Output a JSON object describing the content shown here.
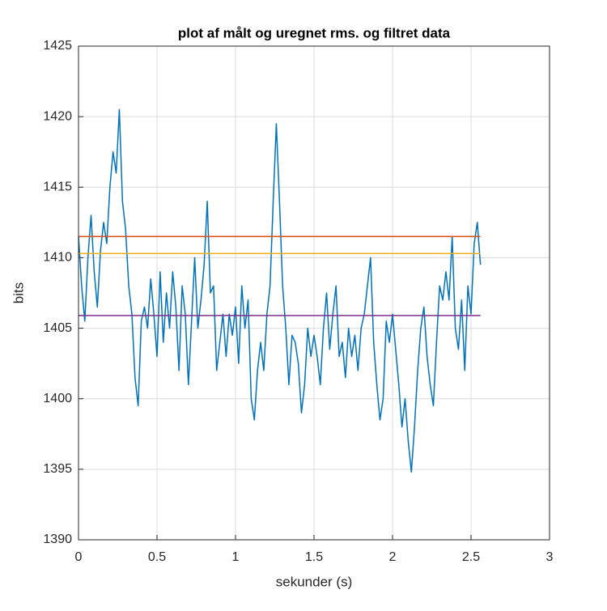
{
  "chart_data": {
    "type": "line",
    "title": "plot af målt og uregnet rms. og filtret data",
    "xlabel": "sekunder (s)",
    "ylabel": "bits",
    "xlim": [
      0,
      3
    ],
    "ylim": [
      1390,
      1425
    ],
    "xticks": [
      0,
      0.5,
      1,
      1.5,
      2,
      2.5,
      3
    ],
    "yticks": [
      1390,
      1395,
      1400,
      1405,
      1410,
      1415,
      1420,
      1425
    ],
    "grid": true,
    "series": [
      {
        "color": "#0072bd",
        "x": [
          0,
          0.02,
          0.04,
          0.06,
          0.08,
          0.1,
          0.12,
          0.14,
          0.16,
          0.18,
          0.2,
          0.22,
          0.24,
          0.26,
          0.28,
          0.3,
          0.32,
          0.34,
          0.36,
          0.38,
          0.4,
          0.42,
          0.44,
          0.46,
          0.48,
          0.5,
          0.52,
          0.54,
          0.56,
          0.58,
          0.6,
          0.62,
          0.64,
          0.66,
          0.68,
          0.7,
          0.72,
          0.74,
          0.76,
          0.78,
          0.8,
          0.82,
          0.84,
          0.86,
          0.88,
          0.9,
          0.92,
          0.94,
          0.96,
          0.98,
          1,
          1.02,
          1.04,
          1.06,
          1.08,
          1.1,
          1.12,
          1.14,
          1.16,
          1.18,
          1.2,
          1.22,
          1.24,
          1.26,
          1.28,
          1.3,
          1.32,
          1.34,
          1.36,
          1.38,
          1.4,
          1.42,
          1.44,
          1.46,
          1.48,
          1.5,
          1.52,
          1.54,
          1.56,
          1.58,
          1.6,
          1.62,
          1.64,
          1.66,
          1.68,
          1.7,
          1.72,
          1.74,
          1.76,
          1.78,
          1.8,
          1.82,
          1.84,
          1.86,
          1.88,
          1.9,
          1.92,
          1.94,
          1.96,
          1.98,
          2,
          2.02,
          2.04,
          2.06,
          2.08,
          2.1,
          2.12,
          2.14,
          2.16,
          2.18,
          2.2,
          2.22,
          2.24,
          2.26,
          2.28,
          2.3,
          2.32,
          2.34,
          2.36,
          2.38,
          2.4,
          2.42,
          2.44,
          2.46,
          2.48,
          2.5,
          2.52,
          2.54,
          2.56
        ],
        "values": [
          1411.5,
          1408,
          1405.5,
          1410,
          1413,
          1409,
          1406.5,
          1410.5,
          1412.5,
          1411,
          1415,
          1417.5,
          1416,
          1420.5,
          1414,
          1412,
          1408,
          1406,
          1401.5,
          1399.5,
          1405.5,
          1406.5,
          1405,
          1408.5,
          1406,
          1403,
          1409,
          1404,
          1407.5,
          1405,
          1409,
          1406.5,
          1402,
          1408,
          1406,
          1401,
          1405.5,
          1410,
          1405,
          1407,
          1409.5,
          1414,
          1407.5,
          1408,
          1402,
          1404,
          1406,
          1403,
          1406,
          1404.5,
          1406.5,
          1402.5,
          1408,
          1405,
          1407,
          1400,
          1398.5,
          1402,
          1404,
          1402,
          1406,
          1408,
          1414,
          1419.5,
          1414,
          1408,
          1405,
          1401,
          1404.5,
          1404,
          1402.5,
          1399,
          1401,
          1405,
          1403,
          1404.5,
          1403,
          1401,
          1405,
          1407.5,
          1403.5,
          1406,
          1408,
          1403,
          1404,
          1401.5,
          1405,
          1403,
          1404.5,
          1402,
          1405,
          1406,
          1408,
          1410,
          1404,
          1401,
          1398.5,
          1400,
          1405.5,
          1404,
          1406,
          1403.5,
          1401,
          1398,
          1400,
          1397,
          1394.8,
          1398,
          1402,
          1405,
          1406.5,
          1403,
          1401,
          1399.5,
          1404,
          1408,
          1407,
          1409,
          1407,
          1411.5,
          1405,
          1403.5,
          1407,
          1402,
          1408,
          1406,
          1411,
          1412.5,
          1409.5
        ]
      },
      {
        "color": "#d95319",
        "x": [
          0,
          2.56
        ],
        "values": [
          1411.5,
          1411.5
        ]
      },
      {
        "color": "#edb120",
        "x": [
          0,
          2.56
        ],
        "values": [
          1410.3,
          1410.3
        ]
      },
      {
        "color": "#7e2f8e",
        "x": [
          0,
          2.56
        ],
        "values": [
          1405.9,
          1405.9
        ]
      }
    ]
  }
}
